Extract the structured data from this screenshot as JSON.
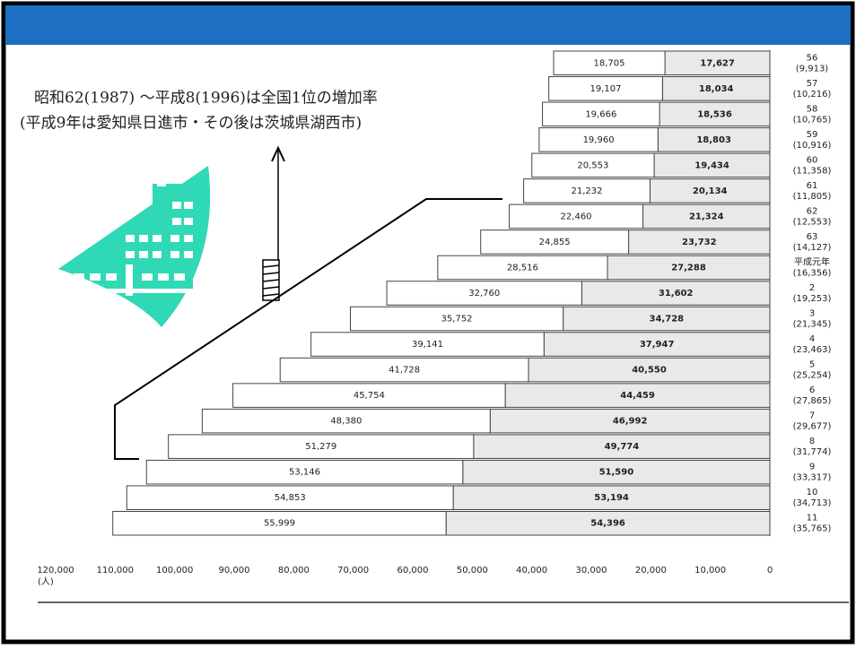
{
  "chart_data": {
    "type": "bar",
    "orientation": "horizontal",
    "stacked": true,
    "x_reversed": true,
    "annotation": [
      "昭和62(1987) ～平成8(1996)は全国1位の増加率",
      "(平成9年は愛知県日進市・その後は茨城県湖西市)"
    ],
    "x_unit_label": "(人)",
    "categories": [
      "56",
      "57",
      "58",
      "59",
      "60",
      "61",
      "62",
      "63",
      "平成元年",
      "2",
      "3",
      "4",
      "5",
      "6",
      "7",
      "8",
      "9",
      "10",
      "11"
    ],
    "household_labels": [
      "(9,913)",
      "(10,216)",
      "(10,765)",
      "(10,916)",
      "(11,358)",
      "(11,805)",
      "(12,553)",
      "(14,127)",
      "(16,356)",
      "(19,253)",
      "(21,345)",
      "(23,463)",
      "(25,254)",
      "(27,865)",
      "(29,677)",
      "(31,774)",
      "(33,317)",
      "(34,713)",
      "(35,765)"
    ],
    "series": [
      {
        "color": "#e9e9e9",
        "values": [
          17627,
          18034,
          18536,
          18803,
          19434,
          20134,
          21324,
          23732,
          27288,
          31602,
          34728,
          37947,
          40550,
          44459,
          46992,
          49774,
          51590,
          53194,
          54396
        ],
        "value_labels": [
          "17,627",
          "18,034",
          "18,536",
          "18,803",
          "19,434",
          "20,134",
          "21,324",
          "23,732",
          "27,288",
          "31,602",
          "34,728",
          "37,947",
          "40,550",
          "44,459",
          "46,992",
          "49,774",
          "51,590",
          "53,194",
          "54,396"
        ]
      },
      {
        "color": "#ffffff",
        "values": [
          18705,
          19107,
          19666,
          19960,
          20553,
          21232,
          22460,
          24855,
          28516,
          32760,
          35752,
          39141,
          41728,
          45754,
          48380,
          51279,
          53146,
          54853,
          55999
        ],
        "value_labels": [
          "18,705",
          "19,107",
          "19,666",
          "19,960",
          "20,553",
          "21,232",
          "22,460",
          "24,855",
          "28,516",
          "32,760",
          "35,752",
          "39,141",
          "41,728",
          "45,754",
          "48,380",
          "51,279",
          "53,146",
          "54,853",
          "55,999"
        ]
      }
    ],
    "xlim": [
      0,
      120000
    ],
    "xticks": [
      {
        "value": 120000,
        "label": "120,000"
      },
      {
        "value": 110000,
        "label": "110,000"
      },
      {
        "value": 100000,
        "label": "100,000"
      },
      {
        "value": 90000,
        "label": "90,000"
      },
      {
        "value": 80000,
        "label": "80,000"
      },
      {
        "value": 70000,
        "label": "70,000"
      },
      {
        "value": 60000,
        "label": "60,000"
      },
      {
        "value": 50000,
        "label": "50,000"
      },
      {
        "value": 40000,
        "label": "40,000"
      },
      {
        "value": 30000,
        "label": "30,000"
      },
      {
        "value": 20000,
        "label": "20,000"
      },
      {
        "value": 10000,
        "label": "10,000"
      },
      0
    ]
  }
}
